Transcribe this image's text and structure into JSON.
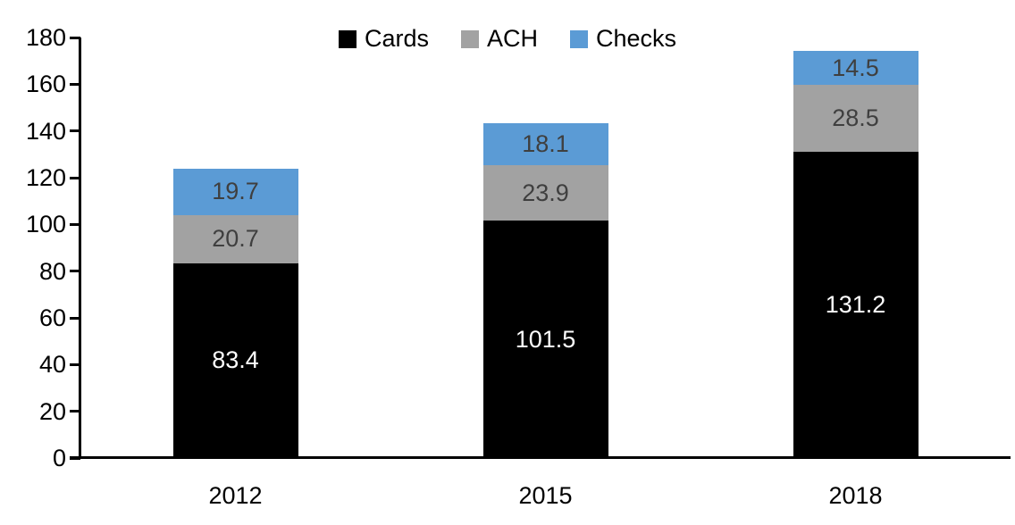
{
  "chart_data": {
    "type": "bar",
    "stacked": true,
    "title": "",
    "xlabel": "",
    "ylabel": "",
    "categories": [
      "2012",
      "2015",
      "2018"
    ],
    "series": [
      {
        "name": "Cards",
        "color": "#000000",
        "label_color": "#ffffff",
        "values": [
          83.4,
          101.5,
          131.2
        ]
      },
      {
        "name": "ACH",
        "color": "#a2a2a2",
        "label_color": "#3f3f3f",
        "values": [
          20.7,
          23.9,
          28.5
        ]
      },
      {
        "name": "Checks",
        "color": "#5b9bd5",
        "label_color": "#3f3f3f",
        "values": [
          19.7,
          18.1,
          14.5
        ]
      }
    ],
    "ylim": [
      0,
      180
    ],
    "yticks": [
      0,
      20,
      40,
      60,
      80,
      100,
      120,
      140,
      160,
      180
    ],
    "grid": false,
    "legend_position": "top",
    "axis_color": "#000000",
    "background_color": "#ffffff"
  }
}
